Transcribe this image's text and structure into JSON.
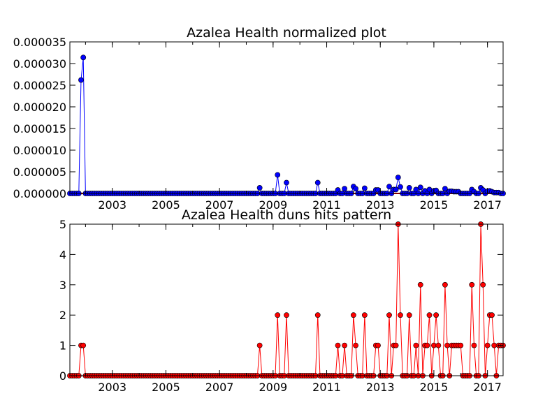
{
  "chart_data": [
    {
      "type": "line",
      "title": "Azalea Health normalized plot",
      "xlabel": "",
      "ylabel": "",
      "x_domain": [
        "2001-06",
        "2017-08"
      ],
      "x_ticks": [
        "2003",
        "2005",
        "2007",
        "2009",
        "2011",
        "2013",
        "2015",
        "2017"
      ],
      "y_ticks": [
        "0.000000",
        "0.000005",
        "0.000010",
        "0.000015",
        "0.000020",
        "0.000025",
        "0.000030",
        "0.000035"
      ],
      "ylim": [
        0,
        3.5e-05
      ],
      "grid": false,
      "colors": {
        "line": "#0000ff",
        "marker": "#0000ff",
        "marker_edge": "#000000",
        "baseline": "#ff0000"
      },
      "series": [
        {
          "points": [
            [
              "2001-11",
              2.62e-05
            ],
            [
              "2001-12",
              3.14e-05
            ],
            [
              "2008-07",
              1.3e-06
            ],
            [
              "2009-03",
              4.3e-06
            ],
            [
              "2009-07",
              2.5e-06
            ],
            [
              "2010-09",
              2.5e-06
            ],
            [
              "2011-06",
              8e-07
            ],
            [
              "2011-09",
              1.1e-06
            ],
            [
              "2012-01",
              1.6e-06
            ],
            [
              "2012-02",
              1.1e-06
            ],
            [
              "2012-06",
              1.2e-06
            ],
            [
              "2012-11",
              8e-07
            ],
            [
              "2012-12",
              8e-07
            ],
            [
              "2013-05",
              1.6e-06
            ],
            [
              "2013-07",
              9e-07
            ],
            [
              "2013-08",
              9e-07
            ],
            [
              "2013-09",
              3.7e-06
            ],
            [
              "2013-10",
              1.5e-06
            ],
            [
              "2014-02",
              1.3e-06
            ],
            [
              "2014-05",
              9e-07
            ],
            [
              "2014-07",
              1.4e-06
            ],
            [
              "2014-09",
              6e-07
            ],
            [
              "2014-11",
              9e-07
            ],
            [
              "2015-01",
              6e-07
            ],
            [
              "2015-02",
              7e-07
            ],
            [
              "2015-06",
              1.1e-06
            ],
            [
              "2015-08",
              5e-07
            ],
            [
              "2015-09",
              5e-07
            ],
            [
              "2015-10",
              4e-07
            ],
            [
              "2015-11",
              4e-07
            ],
            [
              "2015-12",
              4e-07
            ],
            [
              "2016-06",
              9e-07
            ],
            [
              "2016-07",
              4e-07
            ],
            [
              "2016-10",
              1.3e-06
            ],
            [
              "2016-11",
              8e-07
            ],
            [
              "2017-01",
              5e-07
            ],
            [
              "2017-02",
              6e-07
            ],
            [
              "2017-03",
              4e-07
            ],
            [
              "2017-04",
              2e-07
            ],
            [
              "2017-05",
              2e-07
            ],
            [
              "2017-06",
              2e-07
            ]
          ]
        }
      ]
    },
    {
      "type": "line",
      "title": "Azalea Health duns hits pattern",
      "xlabel": "",
      "ylabel": "",
      "x_domain": [
        "2001-06",
        "2017-08"
      ],
      "x_ticks": [
        "2003",
        "2005",
        "2007",
        "2009",
        "2011",
        "2013",
        "2015",
        "2017"
      ],
      "y_ticks": [
        "0",
        "1",
        "2",
        "3",
        "4",
        "5"
      ],
      "ylim": [
        0,
        5
      ],
      "grid": false,
      "colors": {
        "line": "#ff0000",
        "marker": "#ff0000",
        "marker_edge": "#000000"
      },
      "series": [
        {
          "points": [
            [
              "2001-11",
              1
            ],
            [
              "2001-12",
              1
            ],
            [
              "2008-07",
              1
            ],
            [
              "2009-03",
              2
            ],
            [
              "2009-07",
              2
            ],
            [
              "2010-09",
              2
            ],
            [
              "2011-06",
              1
            ],
            [
              "2011-09",
              1
            ],
            [
              "2012-01",
              2
            ],
            [
              "2012-02",
              1
            ],
            [
              "2012-06",
              2
            ],
            [
              "2012-11",
              1
            ],
            [
              "2012-12",
              1
            ],
            [
              "2013-05",
              2
            ],
            [
              "2013-07",
              1
            ],
            [
              "2013-08",
              1
            ],
            [
              "2013-09",
              5
            ],
            [
              "2013-10",
              2
            ],
            [
              "2014-02",
              2
            ],
            [
              "2014-05",
              1
            ],
            [
              "2014-07",
              3
            ],
            [
              "2014-09",
              1
            ],
            [
              "2014-10",
              1
            ],
            [
              "2014-11",
              2
            ],
            [
              "2015-01",
              1
            ],
            [
              "2015-02",
              2
            ],
            [
              "2015-03",
              1
            ],
            [
              "2015-06",
              3
            ],
            [
              "2015-07",
              1
            ],
            [
              "2015-09",
              1
            ],
            [
              "2015-10",
              1
            ],
            [
              "2015-11",
              1
            ],
            [
              "2015-12",
              1
            ],
            [
              "2016-01",
              1
            ],
            [
              "2016-06",
              3
            ],
            [
              "2016-07",
              1
            ],
            [
              "2016-10",
              5
            ],
            [
              "2016-11",
              3
            ],
            [
              "2017-01",
              1
            ],
            [
              "2017-02",
              2
            ],
            [
              "2017-03",
              2
            ],
            [
              "2017-04",
              1
            ],
            [
              "2017-06",
              1
            ],
            [
              "2017-07",
              1
            ],
            [
              "2017-08",
              1
            ]
          ]
        }
      ]
    }
  ]
}
